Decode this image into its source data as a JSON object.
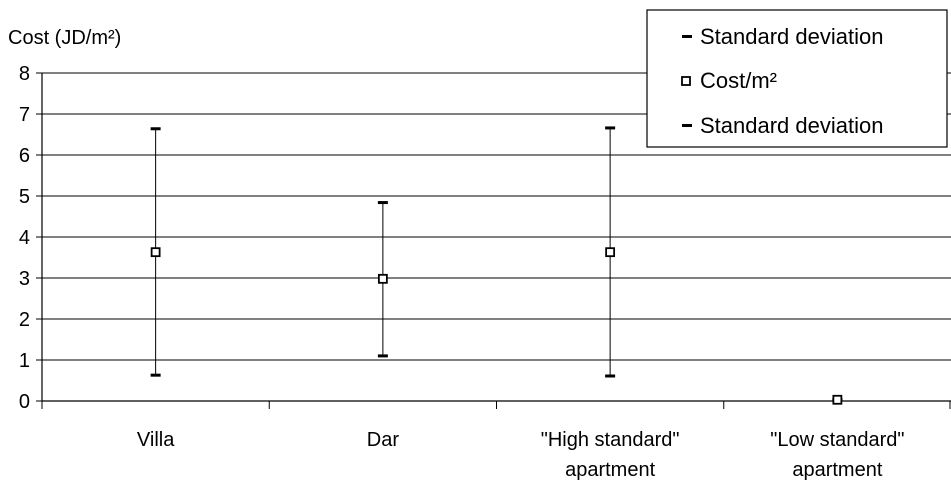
{
  "chart_data": {
    "type": "scatter",
    "ylabel": "Cost (JD/m²)",
    "xlabel": "",
    "ylim": [
      0,
      8
    ],
    "yticks": [
      "0",
      "1",
      "2",
      "3",
      "4",
      "5",
      "6",
      "7",
      "8"
    ],
    "grid": true,
    "categories": [
      [
        "Villa"
      ],
      [
        "Dar"
      ],
      [
        "\"High standard\"",
        "apartment"
      ],
      [
        "\"Low standard\"",
        "apartment"
      ]
    ],
    "series": [
      {
        "name": "Cost/m²",
        "values": [
          3.63,
          2.98,
          3.63,
          0.03
        ]
      },
      {
        "name": "Standard deviation",
        "values": [
          6.64,
          4.84,
          6.66,
          0.03
        ]
      },
      {
        "name": "Standard deviation",
        "values": [
          0.63,
          1.1,
          0.61,
          0.03
        ]
      }
    ],
    "legend": {
      "placement": "top-right",
      "entries": [
        "Standard deviation",
        "Cost/m²",
        "Standard deviation"
      ]
    },
    "colors": {
      "axis": "#000000",
      "grid": "#000000",
      "marker_fill": "#ffffff"
    }
  }
}
